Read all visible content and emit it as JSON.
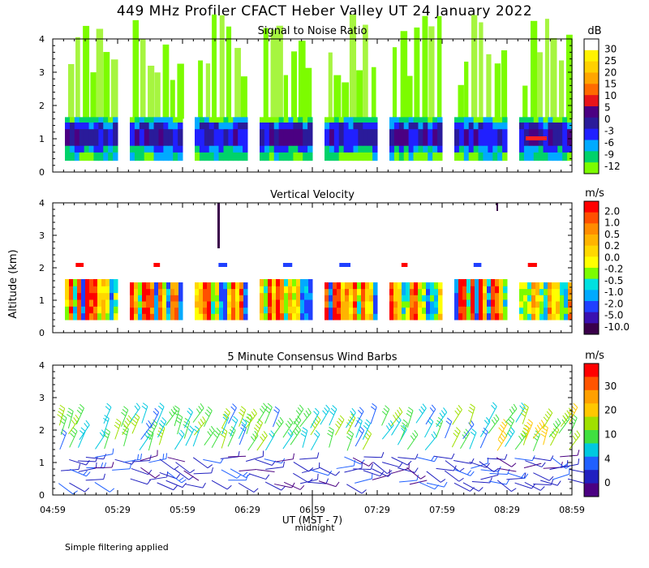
{
  "title": "449 MHz Profiler CFACT Heber Valley UT 24 January 2022",
  "ylabel": "Altitude (km)",
  "xlabel": "UT (MST - 7)",
  "midnight_label": "midnight",
  "footnote": "Simple filtering applied",
  "x_ticks": [
    "04:59",
    "05:29",
    "05:59",
    "06:29",
    "06:59",
    "07:29",
    "07:59",
    "08:29",
    "08:59"
  ],
  "y_ticks": [
    "0",
    "1",
    "2",
    "3",
    "4"
  ],
  "chart_data": [
    {
      "type": "heatmap",
      "title": "Signal to Noise Ratio",
      "unit": "dB",
      "ylim": [
        0,
        4
      ],
      "colorbar_ticks": [
        "30",
        "25",
        "20",
        "15",
        "10",
        "5",
        "0",
        "-3",
        "-6",
        "-9",
        "-12"
      ],
      "colorbar_colors": [
        "#ffffff",
        "#fff200",
        "#ffd000",
        "#ffa500",
        "#ff6a00",
        "#e8141a",
        "#4b0082",
        "#2a1b9a",
        "#2020ff",
        "#00aaff",
        "#00d26a",
        "#7cfc00"
      ]
    },
    {
      "type": "heatmap",
      "title": "Vertical Velocity",
      "unit": "m/s",
      "ylim": [
        0,
        4
      ],
      "colorbar_ticks": [
        "2.0",
        "1.0",
        "0.5",
        "0.2",
        "0.0",
        "-0.2",
        "-0.5",
        "-1.0",
        "-2.0",
        "-5.0",
        "-10.0"
      ],
      "colorbar_colors": [
        "#ff0000",
        "#ff5000",
        "#ff8c00",
        "#ffb400",
        "#ffd800",
        "#ffff00",
        "#7cfc00",
        "#00e0e0",
        "#00aaff",
        "#2040ff",
        "#3a10b0",
        "#3a004a"
      ]
    },
    {
      "type": "scatter",
      "title": "5 Minute Consensus Wind Barbs",
      "unit": "m/s",
      "ylim": [
        0,
        4
      ],
      "colorbar_ticks": [
        "30",
        "20",
        "10",
        "4",
        "0"
      ],
      "colorbar_colors": [
        "#ff0000",
        "#ff5500",
        "#ffa000",
        "#ffc800",
        "#a0e000",
        "#40e040",
        "#00c8e0",
        "#2060ff",
        "#2020c0",
        "#4b0082"
      ]
    }
  ]
}
